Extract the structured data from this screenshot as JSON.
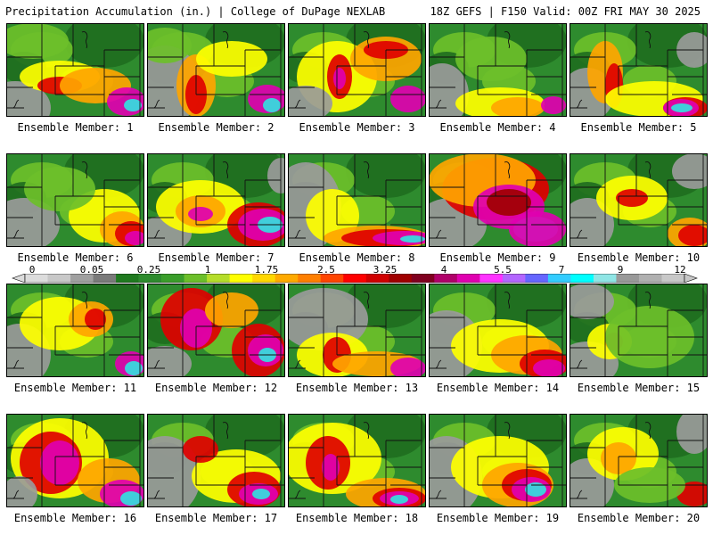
{
  "header": {
    "title_left": "Precipitation Accumulation (in.) | College of DuPage NEXLAB",
    "title_right": "18Z GEFS | F150 Valid: 00Z FRI MAY 30 2025"
  },
  "colorbar": {
    "labels": [
      "0",
      "0.05",
      "0.25",
      "1",
      "1.75",
      "2.5",
      "3.25",
      "4",
      "5.5",
      "7",
      "9",
      "12"
    ],
    "colors": [
      "#dcdcdc",
      "#c8c8c8",
      "#a0a0a0",
      "#7a7a7a",
      "#1f7a1f",
      "#2e8b2e",
      "#3a9e2a",
      "#6cbf2a",
      "#b5dd2a",
      "#ffff00",
      "#ffd700",
      "#ffaa00",
      "#ff7f00",
      "#ff4500",
      "#ff0000",
      "#d00000",
      "#a00000",
      "#800020",
      "#b0006a",
      "#e000b0",
      "#ff33ff",
      "#b366ff",
      "#6666ff",
      "#33ccff",
      "#00ffff",
      "#8fe5e5",
      "#999999",
      "#b0b0b0",
      "#c8c8c8"
    ]
  },
  "palette": {
    "light_green": "#6cbf2a",
    "green": "#2e8b2e",
    "dark_green": "#1f6e1f",
    "gray": "#9a9a9a",
    "light_gray": "#c8c8c8",
    "yellow": "#ffff00",
    "orange": "#ffa500",
    "red": "#e00000",
    "dark_red": "#a00000",
    "magenta": "#e000b0",
    "purple": "#9b59d6",
    "cyan": "#33e0e0"
  },
  "members": [
    {
      "label": "Ensemble Member: 1"
    },
    {
      "label": "Ensemble Member: 2"
    },
    {
      "label": "Ensemble Member: 3"
    },
    {
      "label": "Ensemble Member: 4"
    },
    {
      "label": "Ensemble Member: 5"
    },
    {
      "label": "Ensemble Member: 6"
    },
    {
      "label": "Ensemble Member: 7"
    },
    {
      "label": "Ensemble Member: 8"
    },
    {
      "label": "Ensemble Member: 9"
    },
    {
      "label": "Ensemble Member: 10"
    },
    {
      "label": "Ensemble Member: 11"
    },
    {
      "label": "Ensemble Member: 12"
    },
    {
      "label": "Ensemble Member: 13"
    },
    {
      "label": "Ensemble Member: 14"
    },
    {
      "label": "Ensemble Member: 15"
    },
    {
      "label": "Ensemble Member: 16"
    },
    {
      "label": "Ensemble Member: 17"
    },
    {
      "label": "Ensemble Member: 18"
    },
    {
      "label": "Ensemble Member: 19"
    },
    {
      "label": "Ensemble Member: 20"
    }
  ]
}
